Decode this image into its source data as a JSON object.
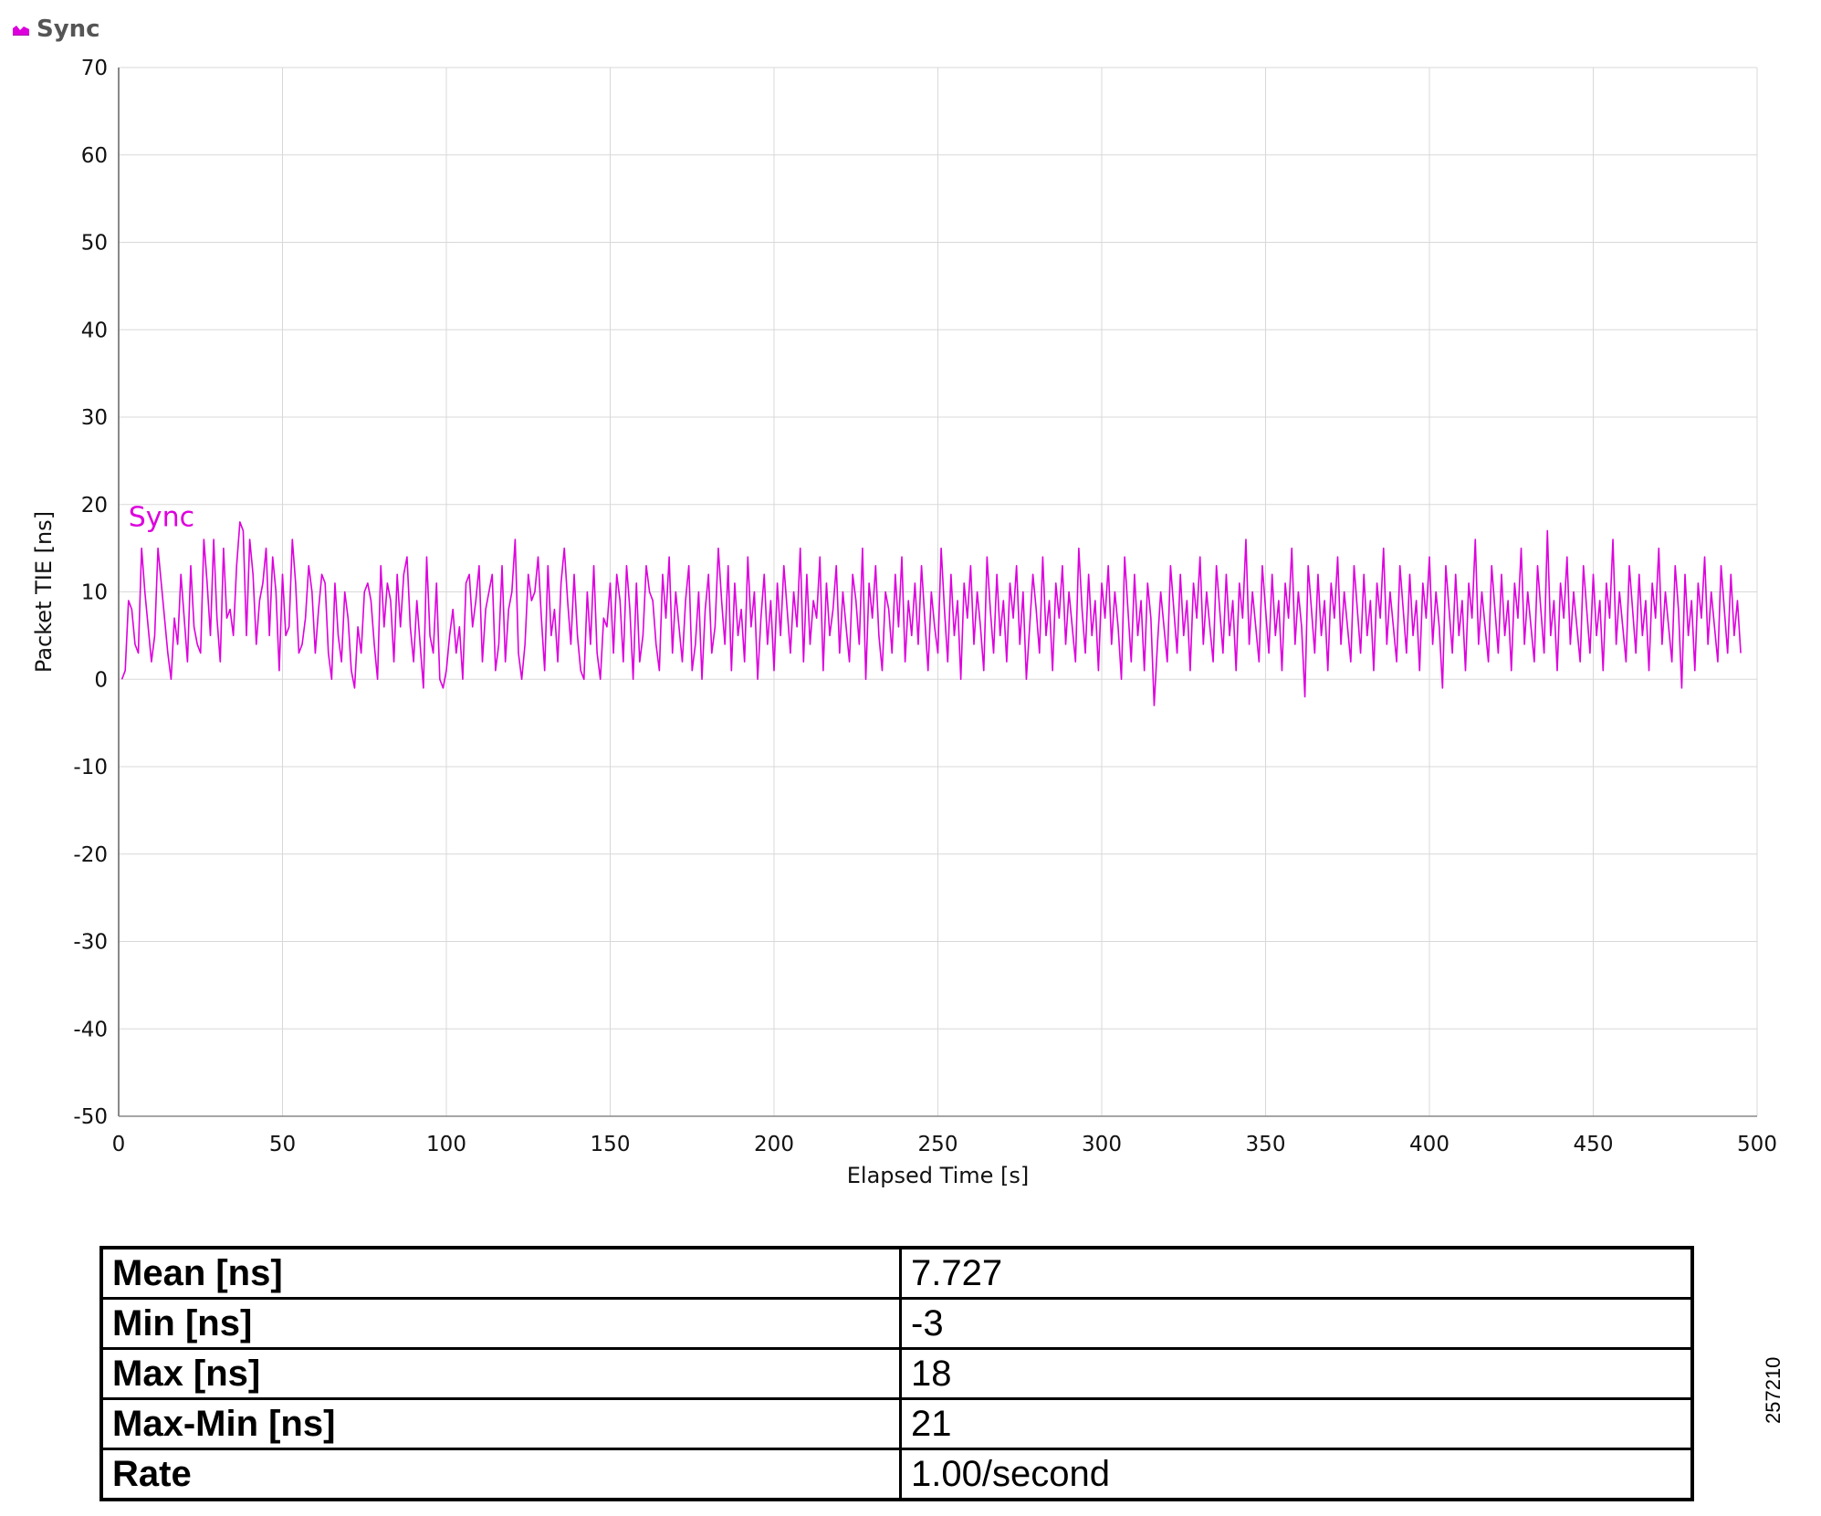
{
  "header": {
    "series_name": "Sync",
    "icon": "area-chart-icon"
  },
  "colors": {
    "series": "#dd00dd",
    "grid": "#d8d8d8",
    "axis": "#888888"
  },
  "chart_data": {
    "type": "line",
    "xlabel": "Elapsed Time [s]",
    "ylabel": "Packet TIE [ns]",
    "xlim": [
      0,
      500
    ],
    "ylim": [
      -50,
      70
    ],
    "xticks": [
      0,
      50,
      100,
      150,
      200,
      250,
      300,
      350,
      400,
      450,
      500
    ],
    "yticks": [
      70,
      60,
      50,
      40,
      30,
      20,
      10,
      0,
      -10,
      -20,
      -30,
      -40,
      -50
    ],
    "grid": true,
    "series": [
      {
        "name": "Sync",
        "x_start": 1,
        "x_step": 1,
        "values": [
          0,
          1,
          9,
          8,
          4,
          3,
          15,
          10,
          6,
          2,
          5,
          15,
          11,
          7,
          3,
          0,
          7,
          4,
          12,
          7,
          2,
          13,
          6,
          4,
          3,
          16,
          11,
          5,
          16,
          7,
          2,
          15,
          7,
          8,
          5,
          13,
          18,
          17,
          5,
          16,
          12,
          4,
          9,
          11,
          15,
          5,
          14,
          10,
          1,
          12,
          5,
          6,
          16,
          11,
          3,
          4,
          7,
          13,
          10,
          3,
          8,
          12,
          11,
          3,
          0,
          11,
          5,
          2,
          10,
          7,
          1,
          -1,
          6,
          3,
          10,
          11,
          9,
          4,
          0,
          13,
          6,
          11,
          9,
          2,
          12,
          6,
          12,
          14,
          6,
          2,
          9,
          4,
          -1,
          14,
          5,
          3,
          11,
          0,
          -1,
          1,
          5,
          8,
          3,
          6,
          0,
          11,
          12,
          6,
          9,
          13,
          2,
          8,
          10,
          12,
          1,
          4,
          13,
          2,
          8,
          10,
          16,
          3,
          0,
          4,
          12,
          9,
          10,
          14,
          7,
          1,
          13,
          5,
          8,
          2,
          11,
          15,
          9,
          4,
          12,
          5,
          1,
          0,
          10,
          4,
          13,
          3,
          0,
          7,
          6,
          11,
          3,
          12,
          9,
          2,
          13,
          8,
          0,
          11,
          2,
          5,
          13,
          10,
          9,
          4,
          1,
          12,
          7,
          14,
          3,
          10,
          6,
          2,
          9,
          13,
          1,
          4,
          10,
          0,
          8,
          12,
          3,
          6,
          15,
          9,
          4,
          13,
          1,
          11,
          5,
          8,
          2,
          14,
          6,
          10,
          0,
          7,
          12,
          4,
          9,
          1,
          11,
          5,
          13,
          8,
          3,
          10,
          6,
          15,
          2,
          12,
          4,
          9,
          7,
          14,
          1,
          11,
          5,
          8,
          13,
          3,
          10,
          6,
          2,
          12,
          9,
          4,
          15,
          0,
          11,
          7,
          13,
          5,
          1,
          10,
          8,
          3,
          12,
          6,
          14,
          2,
          9,
          5,
          11,
          4,
          13,
          7,
          1,
          10,
          6,
          3,
          15,
          8,
          2,
          12,
          5,
          9,
          0,
          11,
          7,
          13,
          4,
          10,
          6,
          1,
          14,
          8,
          3,
          12,
          5,
          9,
          2,
          11,
          7,
          13,
          4,
          10,
          0,
          6,
          12,
          8,
          3,
          14,
          5,
          9,
          1,
          11,
          7,
          13,
          4,
          10,
          6,
          2,
          15,
          8,
          3,
          12,
          5,
          9,
          1,
          11,
          7,
          13,
          4,
          10,
          6,
          0,
          14,
          8,
          2,
          12,
          5,
          9,
          1,
          11,
          7,
          -3,
          4,
          10,
          6,
          2,
          13,
          8,
          3,
          12,
          5,
          9,
          1,
          11,
          7,
          14,
          4,
          10,
          6,
          2,
          13,
          8,
          3,
          12,
          5,
          9,
          1,
          11,
          7,
          16,
          4,
          10,
          6,
          2,
          13,
          8,
          3,
          12,
          5,
          9,
          1,
          11,
          7,
          15,
          4,
          10,
          6,
          -2,
          13,
          8,
          3,
          12,
          5,
          9,
          1,
          11,
          7,
          14,
          4,
          10,
          6,
          2,
          13,
          8,
          3,
          12,
          5,
          9,
          1,
          11,
          7,
          15,
          4,
          10,
          6,
          2,
          13,
          8,
          3,
          12,
          5,
          9,
          1,
          11,
          7,
          14,
          4,
          10,
          6,
          -1,
          13,
          8,
          3,
          12,
          5,
          9,
          1,
          11,
          7,
          16,
          4,
          10,
          6,
          2,
          13,
          8,
          3,
          12,
          5,
          9,
          1,
          11,
          7,
          15,
          4,
          10,
          6,
          2,
          13,
          8,
          3,
          17,
          5,
          9,
          1,
          11,
          7,
          14,
          4,
          10,
          6,
          2,
          13,
          8,
          3,
          12,
          5,
          9,
          1,
          11,
          7,
          16,
          4,
          10,
          6,
          2,
          13,
          8,
          3,
          12,
          5,
          9,
          1,
          11,
          7,
          15,
          4,
          10,
          6,
          2,
          13,
          8,
          -1,
          12,
          5,
          9,
          1,
          11,
          7,
          14,
          4,
          10,
          6,
          2,
          13,
          8,
          3,
          12,
          5,
          9,
          3
        ]
      }
    ]
  },
  "stats_table": [
    {
      "key": "Mean [ns]",
      "value": "7.727"
    },
    {
      "key": "Min [ns]",
      "value": "-3"
    },
    {
      "key": "Max [ns]",
      "value": "18"
    },
    {
      "key": "Max-Min [ns]",
      "value": "21"
    },
    {
      "key": "Rate",
      "value": "1.00/second"
    }
  ],
  "figure_id": "257210"
}
